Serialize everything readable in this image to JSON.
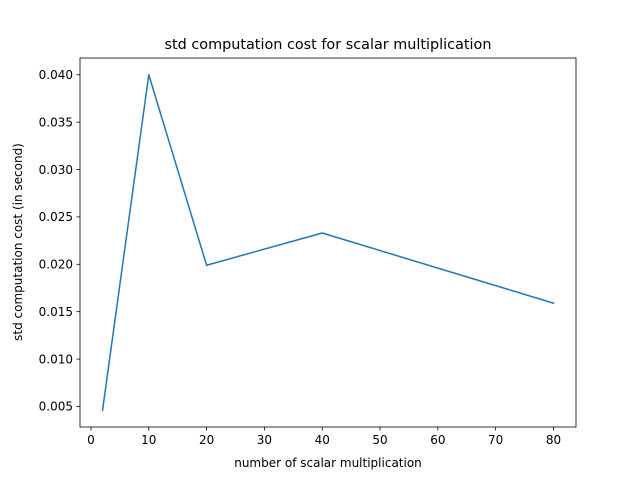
{
  "chart_data": {
    "type": "line",
    "title": "std computation cost for scalar multiplication",
    "xlabel": "number of scalar multiplication",
    "ylabel": "std computation cost (in second)",
    "x": [
      2,
      10,
      20,
      40,
      80
    ],
    "series": [
      {
        "name": "",
        "values": [
          0.0046,
          0.04,
          0.0199,
          0.0233,
          0.0159
        ],
        "color": "#1f77b4"
      }
    ],
    "xlim": [
      -1.9,
      83.9
    ],
    "ylim": [
      0.00283,
      0.04177
    ],
    "xticks": [
      0,
      10,
      20,
      30,
      40,
      50,
      60,
      70,
      80
    ],
    "xtick_labels": [
      "0",
      "10",
      "20",
      "30",
      "40",
      "50",
      "60",
      "70",
      "80"
    ],
    "yticks": [
      0.005,
      0.01,
      0.015,
      0.02,
      0.025,
      0.03,
      0.035,
      0.04
    ],
    "ytick_labels": [
      "0.005",
      "0.010",
      "0.015",
      "0.020",
      "0.025",
      "0.030",
      "0.035",
      "0.040"
    ],
    "grid": false,
    "legend": "none"
  }
}
